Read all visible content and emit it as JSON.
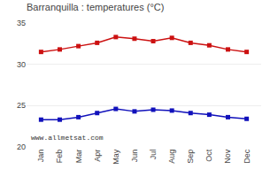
{
  "chart_data": {
    "type": "line",
    "title": "Barranquilla : temperatures (°C)",
    "categories": [
      "Jan",
      "Feb",
      "Mar",
      "Apr",
      "May",
      "Jun",
      "Jul",
      "Aug",
      "Sep",
      "Oct",
      "Nov",
      "Dec"
    ],
    "series": [
      {
        "color": "#cc1111",
        "values": [
          31.5,
          31.8,
          32.2,
          32.6,
          33.3,
          33.1,
          32.8,
          33.2,
          32.6,
          32.3,
          31.8,
          31.5
        ]
      },
      {
        "color": "#1111bb",
        "values": [
          23.3,
          23.3,
          23.6,
          24.1,
          24.6,
          24.3,
          24.5,
          24.4,
          24.1,
          23.9,
          23.6,
          23.4
        ]
      }
    ],
    "marker": "square",
    "ylim": [
      20,
      35
    ],
    "yticks": [
      20,
      25,
      30,
      35
    ],
    "grid": true,
    "annotations": [
      "www.allmetsat.com"
    ]
  }
}
